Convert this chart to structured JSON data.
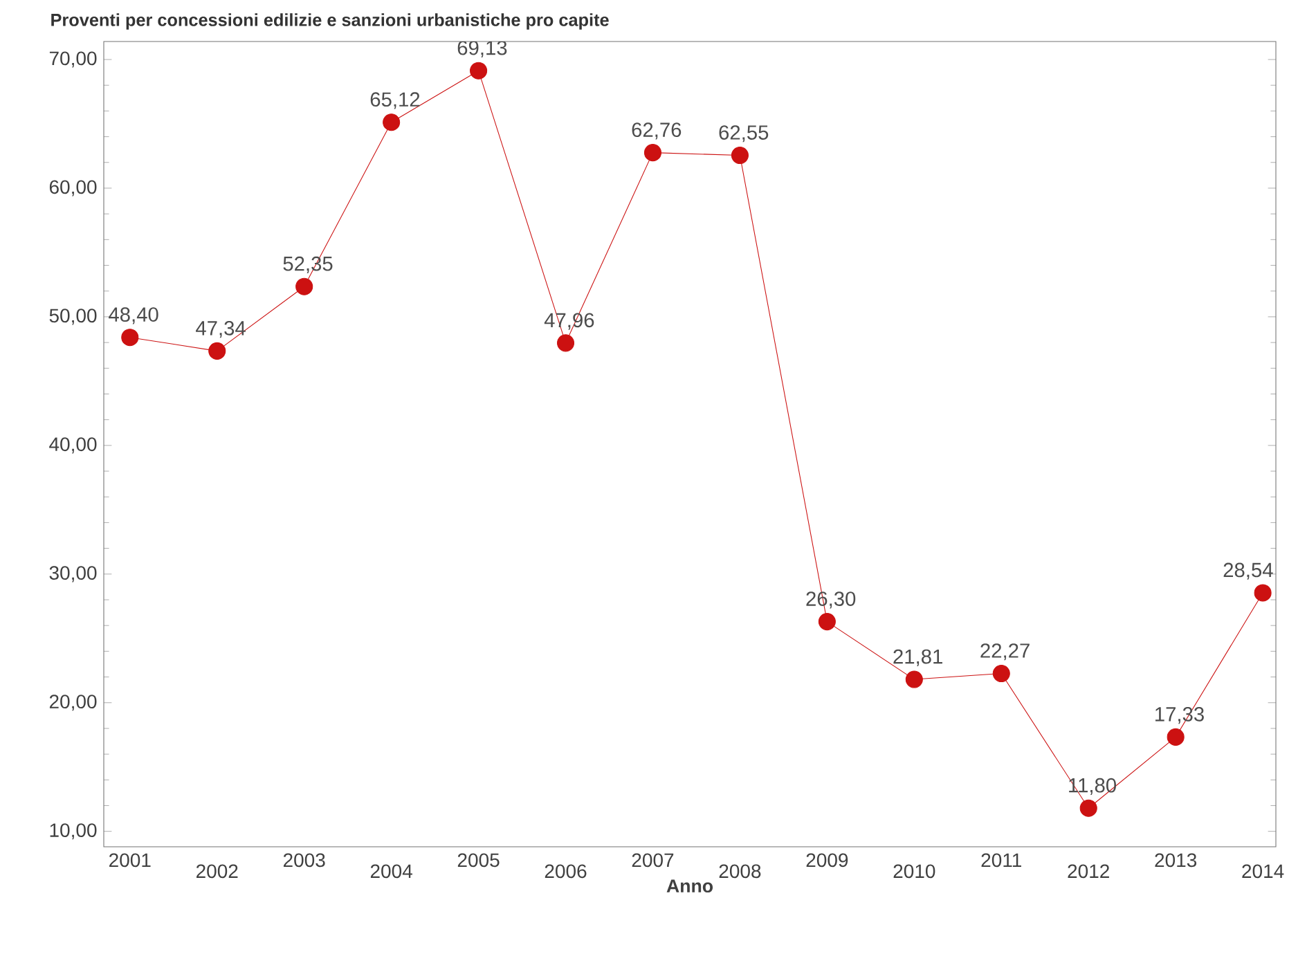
{
  "chart_data": {
    "type": "line",
    "title": "Proventi per concessioni edilizie e sanzioni urbanistiche pro capite",
    "xlabel": "Anno",
    "categories": [
      "2001",
      "2002",
      "2003",
      "2004",
      "2005",
      "2006",
      "2007",
      "2008",
      "2009",
      "2010",
      "2011",
      "2012",
      "2013",
      "2014"
    ],
    "series": [
      {
        "color": "#cc1111",
        "values": [
          48.4,
          47.34,
          52.35,
          65.12,
          69.13,
          47.96,
          62.76,
          62.55,
          26.3,
          21.81,
          22.27,
          11.8,
          17.33,
          28.54
        ],
        "value_labels": [
          "48,40",
          "47,34",
          "52,35",
          "65,12",
          "69,13",
          "47,96",
          "62,76",
          "62,55",
          "26,30",
          "21,81",
          "22,27",
          "11,80",
          "17,33",
          "28,54"
        ]
      }
    ],
    "ylim": [
      8.8,
      71.4
    ],
    "yticks": [
      {
        "value": 10,
        "label": "10,00"
      },
      {
        "value": 20,
        "label": "20,00"
      },
      {
        "value": 30,
        "label": "30,00"
      },
      {
        "value": 40,
        "label": "40,00"
      },
      {
        "value": 50,
        "label": "50,00"
      },
      {
        "value": 60,
        "label": "60,00"
      },
      {
        "value": 70,
        "label": "70,00"
      }
    ],
    "marker": "circle",
    "line_style": "solid",
    "grid": false
  }
}
